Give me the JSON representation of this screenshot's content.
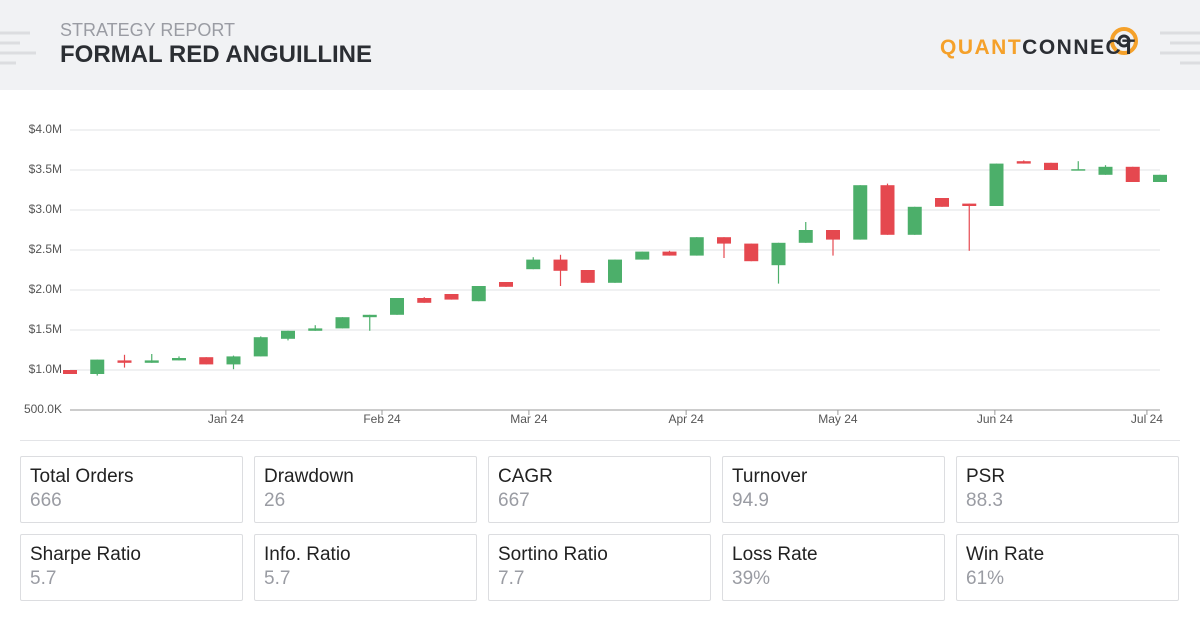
{
  "header": {
    "subtitle": "STRATEGY REPORT",
    "title": "FORMAL RED ANGUILLINE",
    "logo": {
      "quant": "QUANT",
      "connect": "CONNECT"
    }
  },
  "chart_data": {
    "type": "candlestick",
    "categories": [
      null,
      null,
      null,
      null,
      null,
      null,
      null,
      null,
      null,
      null,
      null,
      null,
      null,
      null,
      null,
      null,
      null,
      null,
      null,
      null,
      null,
      null,
      null,
      null,
      null,
      null,
      null,
      null,
      null,
      null,
      null,
      null,
      null,
      null,
      null,
      null,
      null,
      null,
      null,
      null,
      null
    ],
    "open": [
      1000000,
      950000,
      1120000,
      1090000,
      1120000,
      1160000,
      1070000,
      1170000,
      1390000,
      1490000,
      1520000,
      1660000,
      1690000,
      1900000,
      1950000,
      1860000,
      2100000,
      2260000,
      2380000,
      2250000,
      2090000,
      2380000,
      2480000,
      2430000,
      2660000,
      2580000,
      2310000,
      2590000,
      2750000,
      2630000,
      3310000,
      2690000,
      3150000,
      3080000,
      3050000,
      3610000,
      3590000,
      3500000,
      3440000,
      3540000,
      3350000
    ],
    "high": [
      1000000,
      1130000,
      1190000,
      1200000,
      1170000,
      1160000,
      1180000,
      1420000,
      1490000,
      1560000,
      1660000,
      1690000,
      1900000,
      1910000,
      1950000,
      2050000,
      2100000,
      2410000,
      2440000,
      2250000,
      2380000,
      2480000,
      2490000,
      2660000,
      2660000,
      2580000,
      2590000,
      2850000,
      2750000,
      3310000,
      3330000,
      3040000,
      3150000,
      3080000,
      3580000,
      3620000,
      3590000,
      3610000,
      3560000,
      3540000,
      3440000
    ],
    "low": [
      950000,
      930000,
      1030000,
      1090000,
      1120000,
      1070000,
      1010000,
      1170000,
      1370000,
      1490000,
      1520000,
      1490000,
      1690000,
      1840000,
      1880000,
      1860000,
      2040000,
      2260000,
      2050000,
      2090000,
      2090000,
      2380000,
      2430000,
      2430000,
      2400000,
      2360000,
      2080000,
      2590000,
      2430000,
      2630000,
      2690000,
      2690000,
      3040000,
      2490000,
      3050000,
      3580000,
      3500000,
      3500000,
      3440000,
      3350000,
      3350000
    ],
    "close": [
      950000,
      1130000,
      1090000,
      1120000,
      1150000,
      1070000,
      1170000,
      1410000,
      1490000,
      1520000,
      1660000,
      1690000,
      1900000,
      1840000,
      1880000,
      2050000,
      2040000,
      2380000,
      2240000,
      2090000,
      2380000,
      2480000,
      2430000,
      2660000,
      2580000,
      2360000,
      2590000,
      2750000,
      2630000,
      3310000,
      2690000,
      3040000,
      3040000,
      3050000,
      3580000,
      3580000,
      3500000,
      3510000,
      3540000,
      3350000,
      3440000
    ],
    "up_color": "#4caf6a",
    "down_color": "#e5484f",
    "ylim": [
      500000,
      4000000
    ],
    "yticks": [
      {
        "value": 500000,
        "label": "500.0K"
      },
      {
        "value": 1000000,
        "label": "$1.0M"
      },
      {
        "value": 1500000,
        "label": "$1.5M"
      },
      {
        "value": 2000000,
        "label": "$2.0M"
      },
      {
        "value": 2500000,
        "label": "$2.5M"
      },
      {
        "value": 3000000,
        "label": "$3.0M"
      },
      {
        "value": 3500000,
        "label": "$3.5M"
      },
      {
        "value": 4000000,
        "label": "$4.0M"
      }
    ],
    "xticks": [
      {
        "value": 5.72,
        "label": "Jan 24"
      },
      {
        "value": 11.45,
        "label": "Feb 24"
      },
      {
        "value": 16.84,
        "label": "Mar 24"
      },
      {
        "value": 22.61,
        "label": "Apr 24"
      },
      {
        "value": 28.18,
        "label": "May 24"
      },
      {
        "value": 33.94,
        "label": "Jun 24"
      },
      {
        "value": 39.52,
        "label": "Jul 24"
      }
    ],
    "grid": true
  },
  "stats": [
    {
      "label": "Total Orders",
      "value": "666"
    },
    {
      "label": "Drawdown",
      "value": "26"
    },
    {
      "label": "CAGR",
      "value": "667"
    },
    {
      "label": "Turnover",
      "value": "94.9"
    },
    {
      "label": "PSR",
      "value": "88.3"
    },
    {
      "label": "Sharpe Ratio",
      "value": "5.7"
    },
    {
      "label": "Info. Ratio",
      "value": "5.7"
    },
    {
      "label": "Sortino Ratio",
      "value": "7.7"
    },
    {
      "label": "Loss Rate",
      "value": "39%"
    },
    {
      "label": "Win Rate",
      "value": "61%"
    }
  ]
}
